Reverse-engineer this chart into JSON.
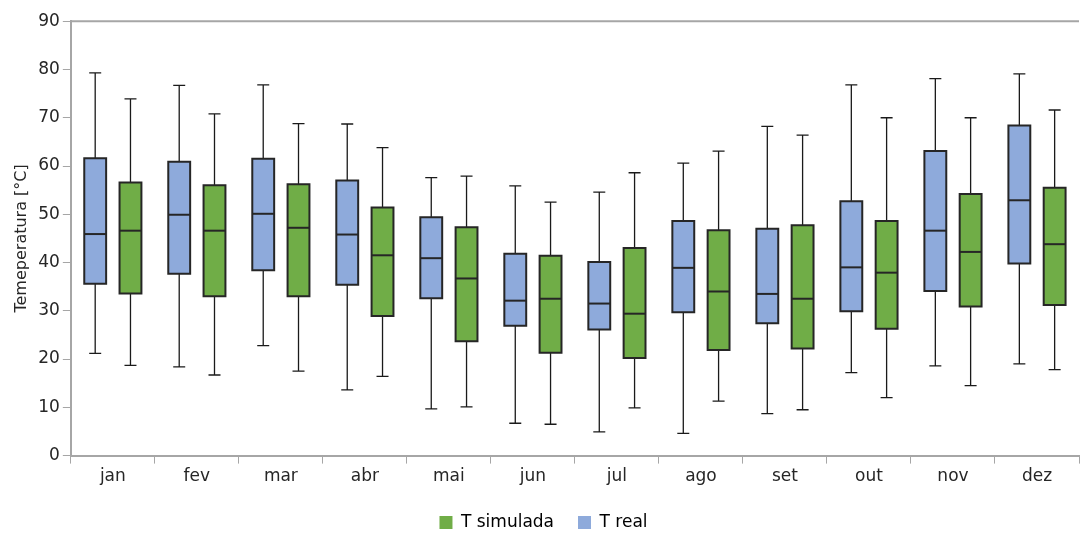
{
  "chart_data": {
    "type": "box",
    "ylabel": "Temeperatura [°C]",
    "categories": [
      "jan",
      "fev",
      "mar",
      "abr",
      "mai",
      "jun",
      "jul",
      "ago",
      "set",
      "out",
      "nov",
      "dez"
    ],
    "ylim": [
      0,
      90
    ],
    "yticks": [
      0,
      10,
      20,
      30,
      40,
      50,
      60,
      70,
      80,
      90
    ],
    "legend": "bottom",
    "series": [
      {
        "name": "T real",
        "color": "#8eaadb",
        "boxes": [
          {
            "low": 21.2,
            "q1": 35.6,
            "median": 45.9,
            "q3": 61.6,
            "high": 79.3
          },
          {
            "low": 18.4,
            "q1": 37.7,
            "median": 49.9,
            "q3": 60.9,
            "high": 76.7
          },
          {
            "low": 22.8,
            "q1": 38.4,
            "median": 50.1,
            "q3": 61.5,
            "high": 76.8
          },
          {
            "low": 13.6,
            "q1": 35.4,
            "median": 45.8,
            "q3": 57.0,
            "high": 68.7
          },
          {
            "low": 9.7,
            "q1": 32.6,
            "median": 40.9,
            "q3": 49.4,
            "high": 57.6
          },
          {
            "low": 6.7,
            "q1": 26.9,
            "median": 32.1,
            "q3": 41.8,
            "high": 55.9
          },
          {
            "low": 4.9,
            "q1": 26.1,
            "median": 31.5,
            "q3": 40.1,
            "high": 54.6
          },
          {
            "low": 4.6,
            "q1": 29.7,
            "median": 38.9,
            "q3": 48.6,
            "high": 60.6
          },
          {
            "low": 8.7,
            "q1": 27.4,
            "median": 33.5,
            "q3": 47.0,
            "high": 68.2
          },
          {
            "low": 17.2,
            "q1": 29.9,
            "median": 39.0,
            "q3": 52.7,
            "high": 76.8
          },
          {
            "low": 18.6,
            "q1": 34.1,
            "median": 46.6,
            "q3": 63.1,
            "high": 78.1
          },
          {
            "low": 19.0,
            "q1": 39.8,
            "median": 52.9,
            "q3": 68.4,
            "high": 79.1
          }
        ]
      },
      {
        "name": "T simulada",
        "color": "#70ad47",
        "boxes": [
          {
            "low": 18.7,
            "q1": 33.6,
            "median": 46.6,
            "q3": 56.6,
            "high": 73.9
          },
          {
            "low": 16.7,
            "q1": 33.0,
            "median": 46.6,
            "q3": 56.0,
            "high": 70.8
          },
          {
            "low": 17.5,
            "q1": 33.0,
            "median": 47.2,
            "q3": 56.2,
            "high": 68.8
          },
          {
            "low": 16.4,
            "q1": 28.9,
            "median": 41.5,
            "q3": 51.4,
            "high": 63.8
          },
          {
            "low": 10.1,
            "q1": 23.7,
            "median": 36.7,
            "q3": 47.3,
            "high": 57.9
          },
          {
            "low": 6.5,
            "q1": 21.3,
            "median": 32.5,
            "q3": 41.4,
            "high": 52.5
          },
          {
            "low": 9.9,
            "q1": 20.2,
            "median": 29.4,
            "q3": 43.0,
            "high": 58.6
          },
          {
            "low": 11.3,
            "q1": 21.9,
            "median": 34.0,
            "q3": 46.7,
            "high": 63.1
          },
          {
            "low": 9.5,
            "q1": 22.2,
            "median": 32.5,
            "q3": 47.7,
            "high": 66.4
          },
          {
            "low": 12.0,
            "q1": 26.3,
            "median": 37.9,
            "q3": 48.6,
            "high": 70.0
          },
          {
            "low": 14.5,
            "q1": 30.9,
            "median": 42.2,
            "q3": 54.2,
            "high": 70.0
          },
          {
            "low": 17.8,
            "q1": 31.2,
            "median": 43.8,
            "q3": 55.5,
            "high": 71.6
          }
        ]
      }
    ]
  }
}
